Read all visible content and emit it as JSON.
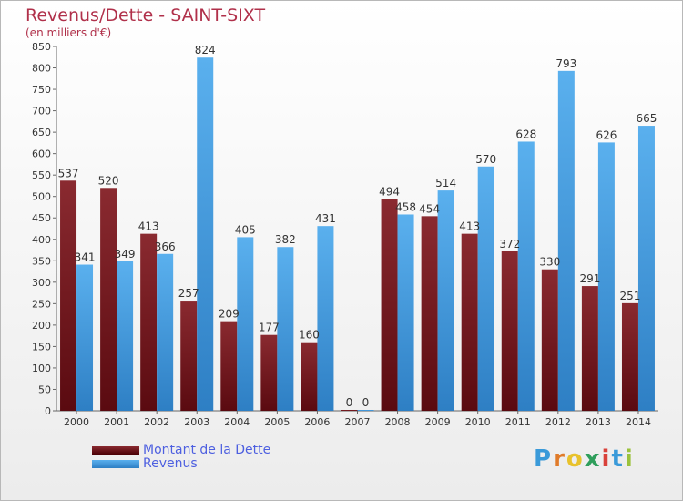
{
  "chart_data": {
    "type": "bar",
    "title": "Revenus/Dette - SAINT-SIXT",
    "subtitle": "(en milliers d'€)",
    "categories": [
      "2000",
      "2001",
      "2002",
      "2003",
      "2004",
      "2005",
      "2006",
      "2007",
      "2008",
      "2009",
      "2010",
      "2011",
      "2012",
      "2013",
      "2014"
    ],
    "series": [
      {
        "name": "Montant de la Dette",
        "color": "#7a1c22",
        "values": [
          537,
          520,
          413,
          257,
          209,
          177,
          160,
          0,
          494,
          454,
          413,
          372,
          330,
          291,
          251
        ]
      },
      {
        "name": "Revenus",
        "color": "#3fa0e4",
        "values": [
          341,
          349,
          366,
          824,
          405,
          382,
          431,
          0,
          458,
          514,
          570,
          628,
          793,
          626,
          665
        ]
      }
    ],
    "ylim": [
      0,
      850
    ],
    "ytick_step": 50,
    "grid": false,
    "legend_position": "bottom-left"
  },
  "logo": {
    "letters": [
      "P",
      "r",
      "o",
      "x",
      "i",
      "t",
      "i"
    ],
    "colors": [
      "#3a9ad9",
      "#e07b2a",
      "#e8c22c",
      "#2f9e5b",
      "#d9413a",
      "#3a9ad9",
      "#9bc23b"
    ]
  }
}
